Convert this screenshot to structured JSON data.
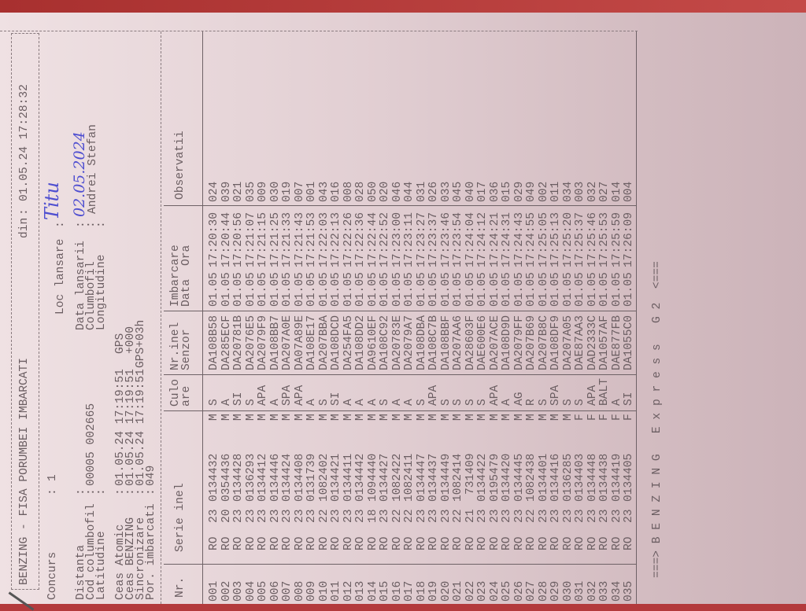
{
  "title": {
    "text": "BENZING - FISA PORUMBEI IMBARCATI",
    "din_label": "din",
    "din_value": "01.05.24 17:28:32"
  },
  "info": {
    "concurs": {
      "label": "Concurs",
      "value": "1"
    },
    "loc_lansare": {
      "label": "Loc lansare",
      "value": "Titu"
    },
    "distanta": {
      "label": "Distanta",
      "value": ""
    },
    "cod_columbofil": {
      "label": "Cod columbofil",
      "value": "00005 002665"
    },
    "latitudine": {
      "label": "Latitudine",
      "value": ""
    },
    "data_lansarii": {
      "label": "Data lansarii",
      "value": "02.05.2024"
    },
    "columbofil": {
      "label": "Columbofil",
      "value": "Andrei Stefan"
    },
    "longitudine": {
      "label": "Longitudine",
      "value": ""
    },
    "ceas_atomic": {
      "label": "Ceas Atomic",
      "value": "01.05.24 17:19:51",
      "extra": "GPS"
    },
    "ceas_benzing": {
      "label": "Ceas BENZING",
      "value": "01.05.24 17:19:51",
      "extra": "+000"
    },
    "sincronizare": {
      "label": "Sincronizare",
      "value": "01.05.24 17:19:51",
      "extra": "GPS+03h"
    },
    "por_imbarcati": {
      "label": "Por. imbarcati",
      "value": "049"
    }
  },
  "table": {
    "headers": {
      "nr": "Nr.",
      "serie": "Serie inel",
      "culoare1": "Culo",
      "culoare2": "are",
      "senzor1": "Nr.inel",
      "senzor2": "Senzor",
      "imb": "Imbarcare",
      "data": "Data",
      "ora": "Ora",
      "obs": "Observatii"
    },
    "rows": [
      [
        "001",
        "RO",
        "23",
        "0134432",
        "M",
        "S",
        "DA108B58",
        "01.05",
        "17:20:30",
        "024"
      ],
      [
        "002",
        "RO",
        "20",
        "0354436",
        "M",
        "A",
        "DA285ECF",
        "01.05",
        "17:20:44",
        "039"
      ],
      [
        "003",
        "RO",
        "23",
        "0134428",
        "M",
        "SI",
        "DA20781B",
        "01.05",
        "17:20:56",
        "021"
      ],
      [
        "004",
        "RO",
        "23",
        "0136293",
        "M",
        "S",
        "DA2076E5",
        "01.05",
        "17:21:07",
        "035"
      ],
      [
        "005",
        "RO",
        "23",
        "0134412",
        "M",
        "APA",
        "DA2079F9",
        "01.05",
        "17:21:15",
        "009"
      ],
      [
        "006",
        "RO",
        "23",
        "0134446",
        "M",
        "A",
        "DA108BB7",
        "01.05",
        "17:21:25",
        "030"
      ],
      [
        "007",
        "RO",
        "23",
        "0134424",
        "M",
        "SPA",
        "DA207A0E",
        "01.05",
        "17:21:33",
        "019"
      ],
      [
        "008",
        "RO",
        "23",
        "0134408",
        "M",
        "APA",
        "DA07A89E",
        "01.05",
        "17:21:43",
        "007"
      ],
      [
        "009",
        "RO",
        "23",
        "0131739",
        "M",
        "A",
        "DA108E17",
        "01.05",
        "17:21:53",
        "001"
      ],
      [
        "010",
        "RO",
        "22",
        "1082402",
        "M",
        "S",
        "DA207BBA",
        "01.05",
        "17:22:03",
        "043"
      ],
      [
        "011",
        "RO",
        "23",
        "0134421",
        "M",
        "SI",
        "DA108DCD",
        "01.05",
        "17:22:13",
        "016"
      ],
      [
        "012",
        "RO",
        "23",
        "0134411",
        "M",
        "A",
        "DA254FA5",
        "01.05",
        "17:22:26",
        "008"
      ],
      [
        "013",
        "RO",
        "23",
        "0134442",
        "M",
        "A",
        "DA108DD2",
        "01.05",
        "17:22:36",
        "028"
      ],
      [
        "014",
        "RO",
        "18",
        "1094440",
        "M",
        "A",
        "DA9610EF",
        "01.05",
        "17:22:44",
        "050"
      ],
      [
        "015",
        "RO",
        "23",
        "0134427",
        "M",
        "S",
        "DA108C92",
        "01.05",
        "17:22:52",
        "020"
      ],
      [
        "016",
        "RO",
        "22",
        "1082422",
        "M",
        "A",
        "DA20783E",
        "01.05",
        "17:23:00",
        "046"
      ],
      [
        "017",
        "RO",
        "22",
        "1082411",
        "M",
        "A",
        "DA2079A7",
        "01.05",
        "17:23:11",
        "044"
      ],
      [
        "018",
        "RO",
        "23",
        "0134447",
        "M",
        "S",
        "DA108DBA",
        "01.05",
        "17:23:27",
        "031"
      ],
      [
        "019",
        "RO",
        "23",
        "0134437",
        "M",
        "APA",
        "DA108C7B",
        "01.05",
        "17:23:37",
        "026"
      ],
      [
        "020",
        "RO",
        "23",
        "0134449",
        "M",
        "S",
        "DA108BBF",
        "01.05",
        "17:23:46",
        "033"
      ],
      [
        "021",
        "RO",
        "22",
        "1082414",
        "M",
        "S",
        "DA207AA6",
        "01.05",
        "17:23:54",
        "045"
      ],
      [
        "022",
        "RO",
        "21",
        "731409",
        "M",
        "S",
        "DA28603F",
        "01.05",
        "17:24:04",
        "040"
      ],
      [
        "023",
        "RO",
        "23",
        "0134422",
        "M",
        "S",
        "DAE600E6",
        "01.05",
        "17:24:12",
        "017"
      ],
      [
        "024",
        "RO",
        "23",
        "0195479",
        "M",
        "APA",
        "DA207ACE",
        "01.05",
        "17:24:21",
        "036"
      ],
      [
        "025",
        "RO",
        "23",
        "0134420",
        "M",
        "A",
        "DA108D9D",
        "01.05",
        "17:24:31",
        "015"
      ],
      [
        "026",
        "RO",
        "23",
        "0134445",
        "M",
        "AG",
        "DA2079FF",
        "01.05",
        "17:24:43",
        "029"
      ],
      [
        "027",
        "RO",
        "22",
        "1082438",
        "M",
        "R",
        "DA207B69",
        "01.05",
        "17:24:55",
        "049"
      ],
      [
        "028",
        "RO",
        "23",
        "0134401",
        "M",
        "S",
        "DA207B8C",
        "01.05",
        "17:25:05",
        "002"
      ],
      [
        "029",
        "RO",
        "23",
        "0134416",
        "M",
        "SPA",
        "DA108DF9",
        "01.05",
        "17:25:13",
        "011"
      ],
      [
        "030",
        "RO",
        "23",
        "0136285",
        "M",
        "S",
        "DA207A05",
        "01.05",
        "17:25:20",
        "034"
      ],
      [
        "031",
        "RO",
        "23",
        "0134403",
        "F",
        "S",
        "DAE87AA3",
        "01.05",
        "17:25:37",
        "003"
      ],
      [
        "032",
        "RO",
        "23",
        "0134448",
        "F",
        "APA",
        "DAD2333C",
        "01.05",
        "17:25:46",
        "032"
      ],
      [
        "033",
        "RO",
        "23",
        "0134438",
        "F",
        "BALT",
        "DA1057AF",
        "01.05",
        "17:25:53",
        "027"
      ],
      [
        "034",
        "RO",
        "23",
        "0134419",
        "F",
        "A",
        "DAE877FB",
        "01.05",
        "17:25:59",
        "014"
      ],
      [
        "035",
        "RO",
        "23",
        "0134405",
        "F",
        "SI",
        "DA1055C0",
        "01.05",
        "17:26:09",
        "004"
      ]
    ]
  },
  "footer": {
    "text": "===> B E N Z I N G   E x p r e s s   G 2  <==="
  },
  "colors": {
    "paper": "#e6d4d8",
    "ink": "#6b5e62",
    "handwriting": "#4f4fd0",
    "background": "#b33a3c"
  }
}
